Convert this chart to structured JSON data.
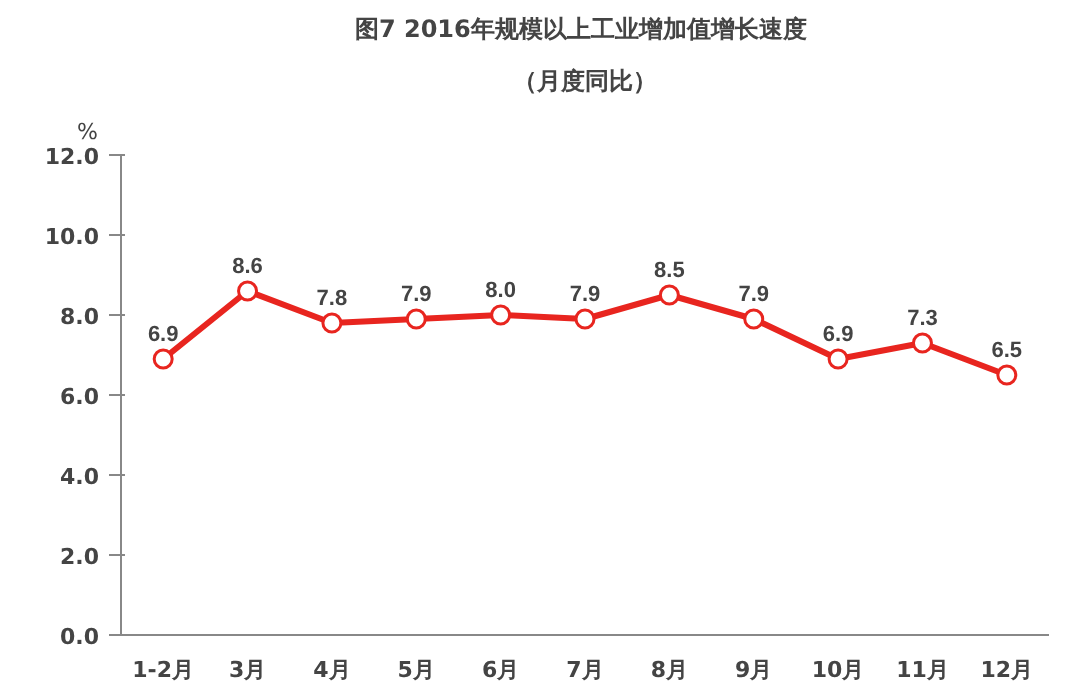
{
  "chart_data": {
    "type": "line",
    "title": "图7  2016年规模以上工业增加值增长速度",
    "subtitle": "（月度同比）",
    "ylabel": "%",
    "categories": [
      "1-2月",
      "3月",
      "4月",
      "5月",
      "6月",
      "7月",
      "8月",
      "9月",
      "10月",
      "11月",
      "12月"
    ],
    "values": [
      6.9,
      8.6,
      7.8,
      7.9,
      8.0,
      7.9,
      8.5,
      7.9,
      6.9,
      7.3,
      6.5
    ],
    "color": "#e8251f",
    "marker": "circle",
    "line_style": "solid",
    "value_labels": [
      "6.9",
      "8.6",
      "7.8",
      "7.9",
      "8.0",
      "7.9",
      "8.5",
      "7.9",
      "6.9",
      "7.3",
      "6.5"
    ],
    "grid": false,
    "ylim": [
      0,
      12
    ],
    "yticks": [
      {
        "value": 0,
        "label": "0.0"
      },
      {
        "value": 2,
        "label": "2.0"
      },
      {
        "value": 4,
        "label": "4.0"
      },
      {
        "value": 6,
        "label": "6.0"
      },
      {
        "value": 8,
        "label": "8.0"
      },
      {
        "value": 10,
        "label": "10.0"
      },
      {
        "value": 12,
        "label": "12.0"
      }
    ]
  }
}
